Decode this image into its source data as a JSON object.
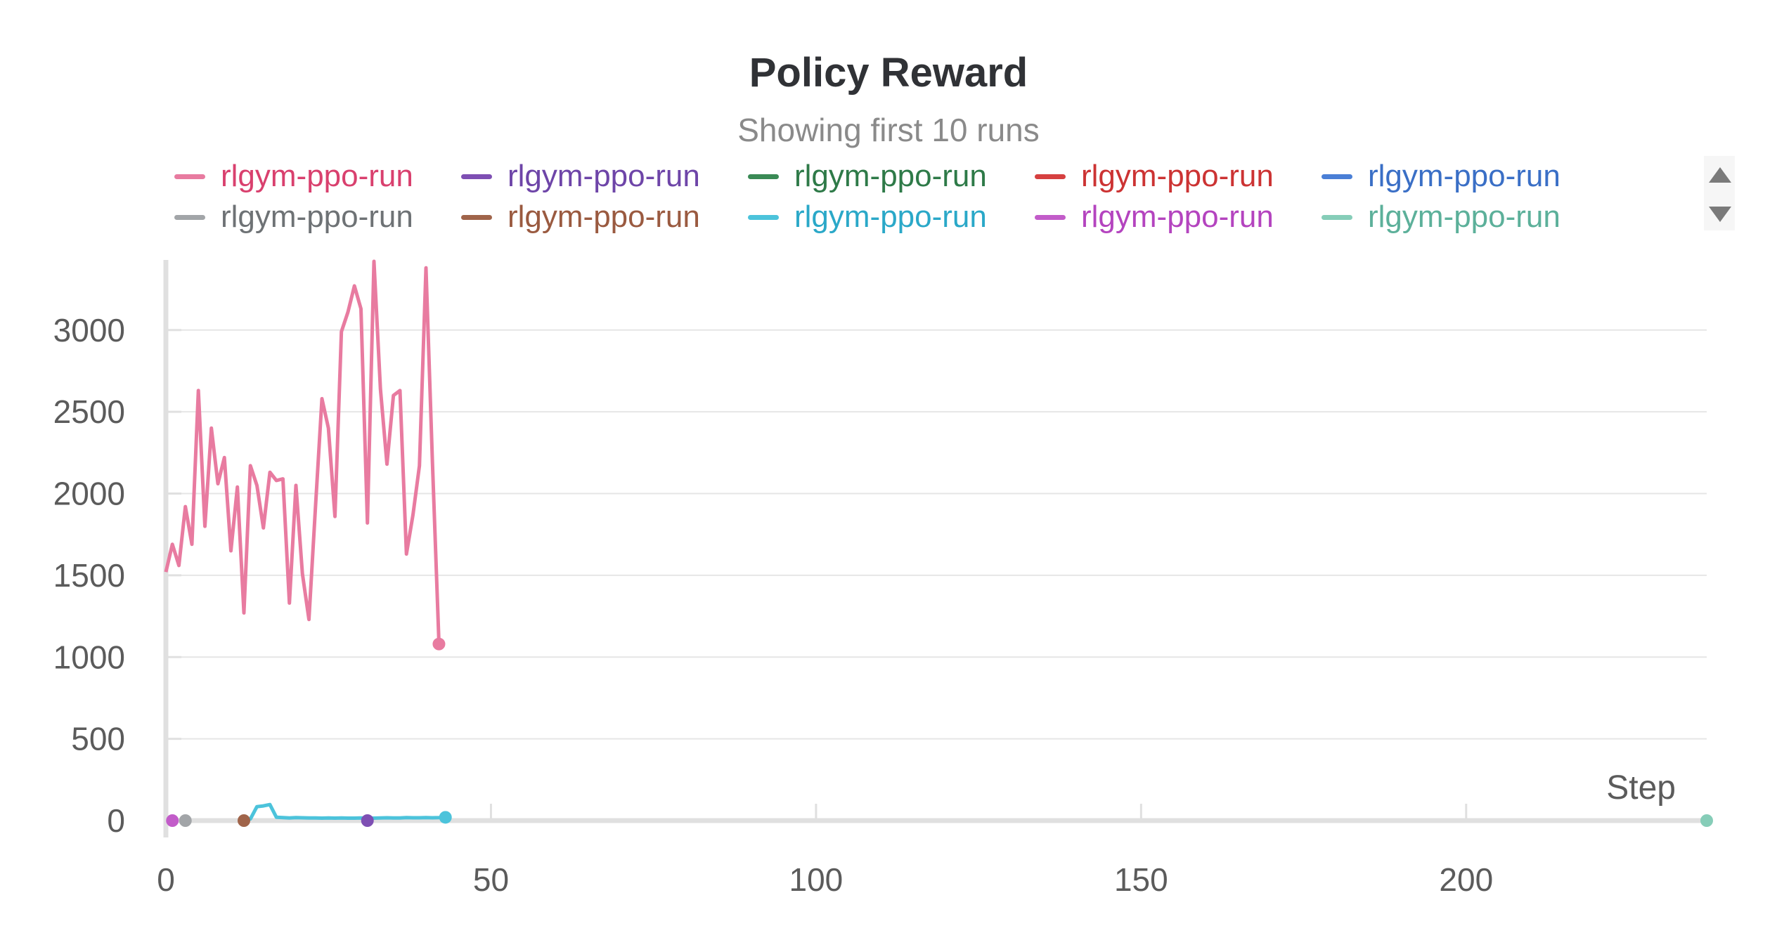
{
  "panel": {
    "title": "Policy Reward",
    "subtitle": "Showing first 10 runs"
  },
  "legend": {
    "rows": [
      [
        {
          "label": "rlgym-ppo-run",
          "color": "#e87ba0"
        },
        {
          "label": "rlgym-ppo-run",
          "color": "#7e4fb3"
        },
        {
          "label": "rlgym-ppo-run",
          "color": "#3a8a55"
        },
        {
          "label": "rlgym-ppo-run",
          "color": "#d64040"
        },
        {
          "label": "rlgym-ppo-run",
          "color": "#4a7fd6"
        }
      ],
      [
        {
          "label": "rlgym-ppo-run",
          "color": "#a2a5a8"
        },
        {
          "label": "rlgym-ppo-run",
          "color": "#a0644a"
        },
        {
          "label": "rlgym-ppo-run",
          "color": "#4cc3db"
        },
        {
          "label": "rlgym-ppo-run",
          "color": "#c25cc9"
        },
        {
          "label": "rlgym-ppo-run",
          "color": "#86cdb8"
        }
      ]
    ],
    "label_colors": [
      "#d9406e",
      "#6e45a8",
      "#2e7a48",
      "#cc3333",
      "#3a6fc6",
      "#6e7275",
      "#9a5a40",
      "#2aa8c8",
      "#b444bf",
      "#5cb09a"
    ],
    "scroll_up_icon": "triangle-up-icon",
    "scroll_down_icon": "triangle-down-icon"
  },
  "chart_data": {
    "type": "line",
    "title": "Policy Reward",
    "subtitle": "Showing first 10 runs",
    "xlabel": "Step",
    "ylabel": "",
    "xlim": [
      0,
      237
    ],
    "ylim": [
      0,
      3420
    ],
    "x_ticks": [
      0,
      50,
      100,
      150,
      200
    ],
    "y_ticks": [
      0,
      500,
      1000,
      1500,
      2000,
      2500,
      3000
    ],
    "grid": true,
    "legend_position": "top",
    "series": [
      {
        "name": "rlgym-ppo-run",
        "color": "#e87ba0",
        "x": [
          0,
          1,
          2,
          3,
          4,
          5,
          6,
          7,
          8,
          9,
          10,
          11,
          12,
          13,
          14,
          15,
          16,
          17,
          18,
          19,
          20,
          21,
          22,
          23,
          24,
          25,
          26,
          27,
          28,
          29,
          30,
          31,
          32,
          33,
          34,
          35,
          36,
          37,
          38,
          39,
          40,
          41,
          42
        ],
        "y": [
          1520,
          1690,
          1560,
          1920,
          1690,
          2630,
          1800,
          2400,
          2060,
          2220,
          1650,
          2040,
          1270,
          2170,
          2050,
          1790,
          2130,
          2080,
          2090,
          1330,
          2050,
          1510,
          1230,
          1910,
          2580,
          2400,
          1860,
          2990,
          3110,
          3270,
          3130,
          1820,
          3420,
          2640,
          2180,
          2600,
          2630,
          1630,
          1870,
          2170,
          3380,
          2190,
          1080
        ]
      },
      {
        "name": "rlgym-ppo-run",
        "color": "#4cc3db",
        "x": [
          12,
          13,
          14,
          15,
          16,
          17,
          18,
          19,
          20,
          21,
          22,
          23,
          24,
          25,
          26,
          27,
          28,
          29,
          30,
          31,
          32,
          33,
          34,
          35,
          36,
          37,
          38,
          39,
          40,
          41,
          42,
          43
        ],
        "y": [
          6,
          10,
          85,
          90,
          98,
          20,
          18,
          16,
          18,
          17,
          16,
          16,
          15,
          16,
          15,
          16,
          15,
          15,
          16,
          15,
          15,
          16,
          17,
          16,
          16,
          18,
          17,
          17,
          18,
          17,
          18,
          20
        ]
      },
      {
        "name": "rlgym-ppo-run",
        "color": "#c25cc9",
        "x": [
          1
        ],
        "y": [
          0
        ]
      },
      {
        "name": "rlgym-ppo-run",
        "color": "#a2a5a8",
        "x": [
          3
        ],
        "y": [
          0
        ]
      },
      {
        "name": "rlgym-ppo-run",
        "color": "#a0644a",
        "x": [
          12
        ],
        "y": [
          0
        ]
      },
      {
        "name": "rlgym-ppo-run",
        "color": "#7e4fb3",
        "x": [
          31
        ],
        "y": [
          0
        ]
      },
      {
        "name": "rlgym-ppo-run",
        "color": "#86cdb8",
        "x": [
          237
        ],
        "y": [
          0
        ]
      }
    ]
  }
}
